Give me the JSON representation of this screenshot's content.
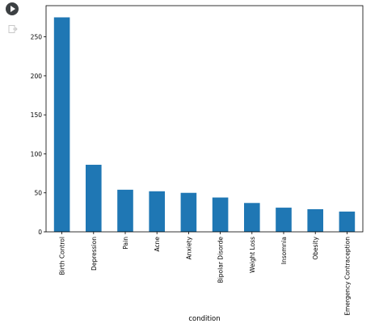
{
  "chart_data": {
    "type": "bar",
    "categories": [
      "Birth Control",
      "Depression",
      "Pain",
      "Acne",
      "Anxiety",
      "Bipolar Disorde",
      "Weight Loss",
      "Insomnia",
      "Obesity",
      "Emergency Contraception"
    ],
    "values": [
      275,
      86,
      54,
      52,
      50,
      44,
      37,
      31,
      29,
      26
    ],
    "xlabel": "condition",
    "ylabel": "",
    "ylim": [
      0,
      290
    ],
    "yticks": [
      0,
      50,
      100,
      150,
      200,
      250
    ],
    "grid": false,
    "legend": "none",
    "bar_color": "#1f77b4"
  },
  "ui": {
    "run_icon": "play-circle-icon",
    "output_icon": "output-arrow-icon"
  }
}
